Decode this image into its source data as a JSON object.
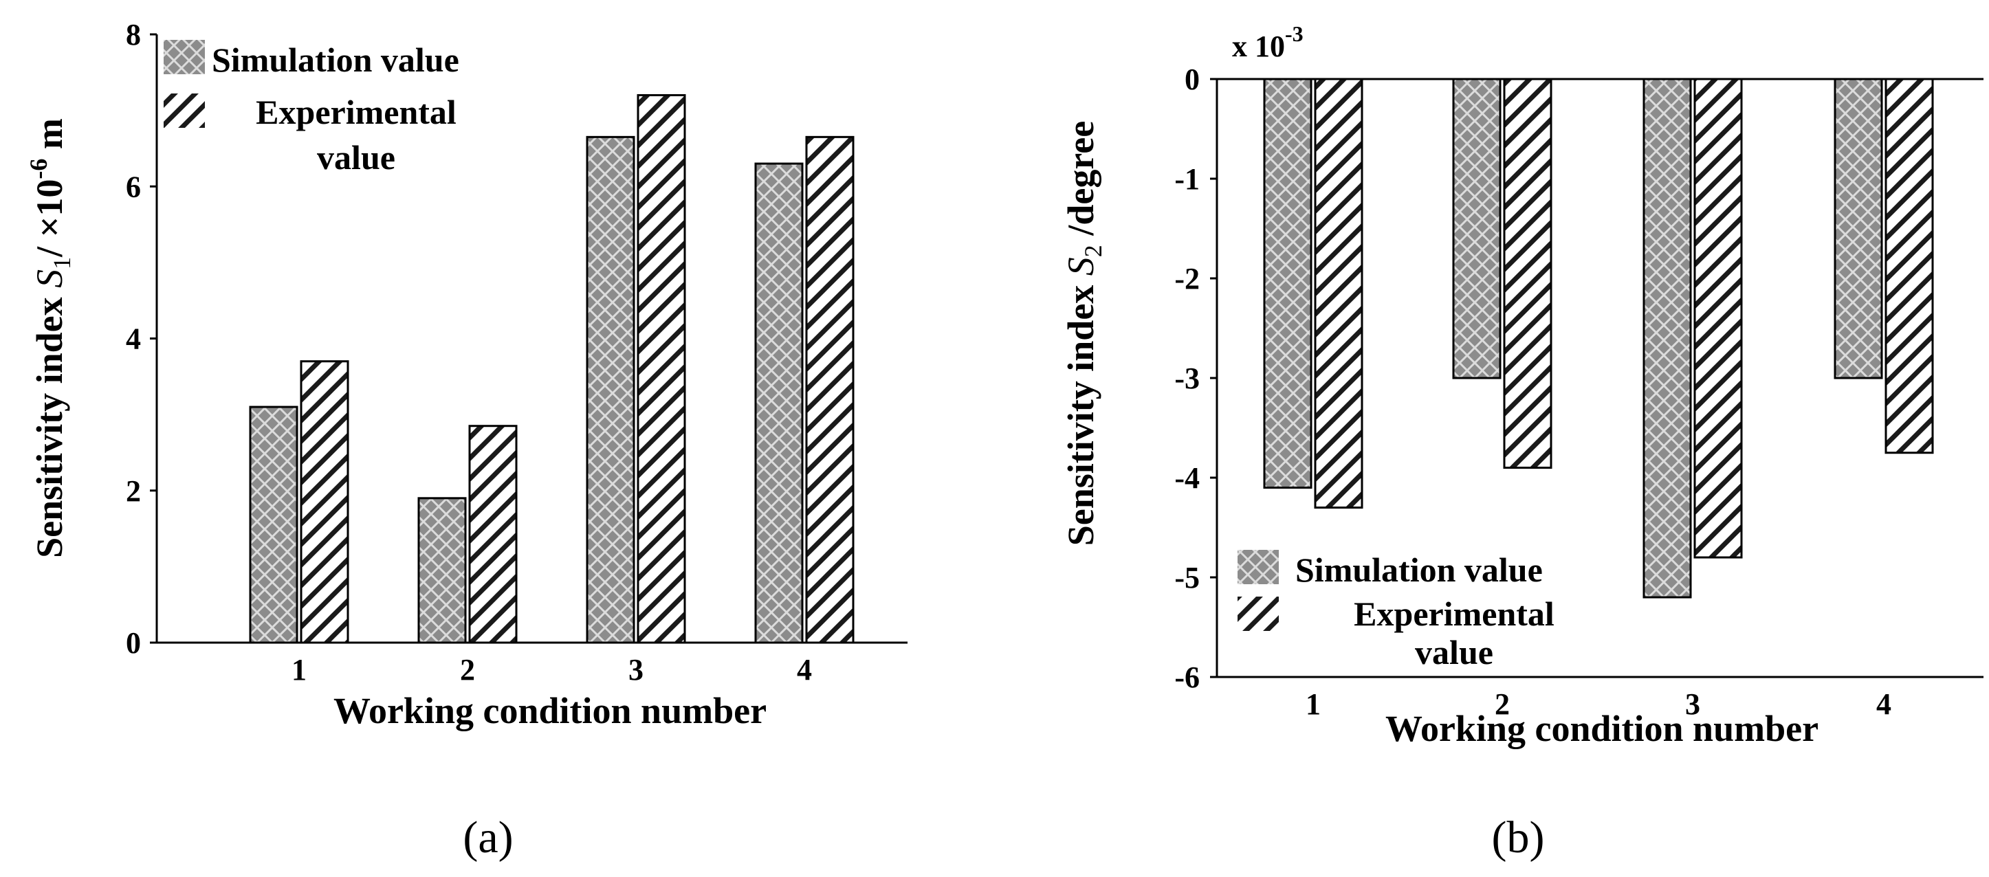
{
  "chart_data": [
    {
      "panel": "(a)",
      "type": "bar",
      "categories": [
        "1",
        "2",
        "3",
        "4"
      ],
      "series": [
        {
          "name": "Simulation value",
          "values": [
            3.1,
            1.9,
            6.65,
            6.3
          ]
        },
        {
          "name": "Experimental value",
          "values": [
            3.7,
            2.85,
            7.2,
            6.65
          ]
        }
      ],
      "xlabel": "Working condition number",
      "ylabel": {
        "prefix": "Sensitivity index ",
        "symbol": "S",
        "sub": "1",
        "suffix": "/ ×10",
        "sup": "-6",
        "unit": " m"
      },
      "ylim": [
        0,
        8
      ],
      "yticks": [
        "0",
        "2",
        "4",
        "6",
        "8"
      ],
      "legend": {
        "placement": "top-left",
        "items": [
          "Simulation value",
          "Experimental",
          "value"
        ]
      },
      "colors": {
        "simulation": "#8c8c8c",
        "experimental": "#ffffff",
        "hatch": "#1a1a1a"
      }
    },
    {
      "panel": "(b)",
      "type": "bar",
      "categories": [
        "1",
        "2",
        "3",
        "4"
      ],
      "series": [
        {
          "name": "Simulation value",
          "values": [
            -4.1,
            -3.0,
            -5.2,
            -3.0
          ]
        },
        {
          "name": "Experimental value",
          "values": [
            -4.3,
            -3.9,
            -4.8,
            -3.75
          ]
        }
      ],
      "xlabel": "Working condition number",
      "ylabel": {
        "prefix": "Sensitivity index ",
        "symbol": "S",
        "sub": "2",
        "suffix": " /degree"
      },
      "scale_label": {
        "base": "x 10",
        "exp": "-3"
      },
      "ylim": [
        -6,
        0
      ],
      "yticks": [
        "0",
        "-1",
        "-2",
        "-3",
        "-4",
        "-5",
        "-6"
      ],
      "legend": {
        "placement": "bottom-left",
        "items": [
          "Simulation value",
          "Experimental",
          "value"
        ]
      },
      "colors": {
        "simulation": "#8c8c8c",
        "experimental": "#ffffff",
        "hatch": "#1a1a1a"
      }
    }
  ],
  "captions": {
    "a": "(a)",
    "b": "(b)"
  }
}
